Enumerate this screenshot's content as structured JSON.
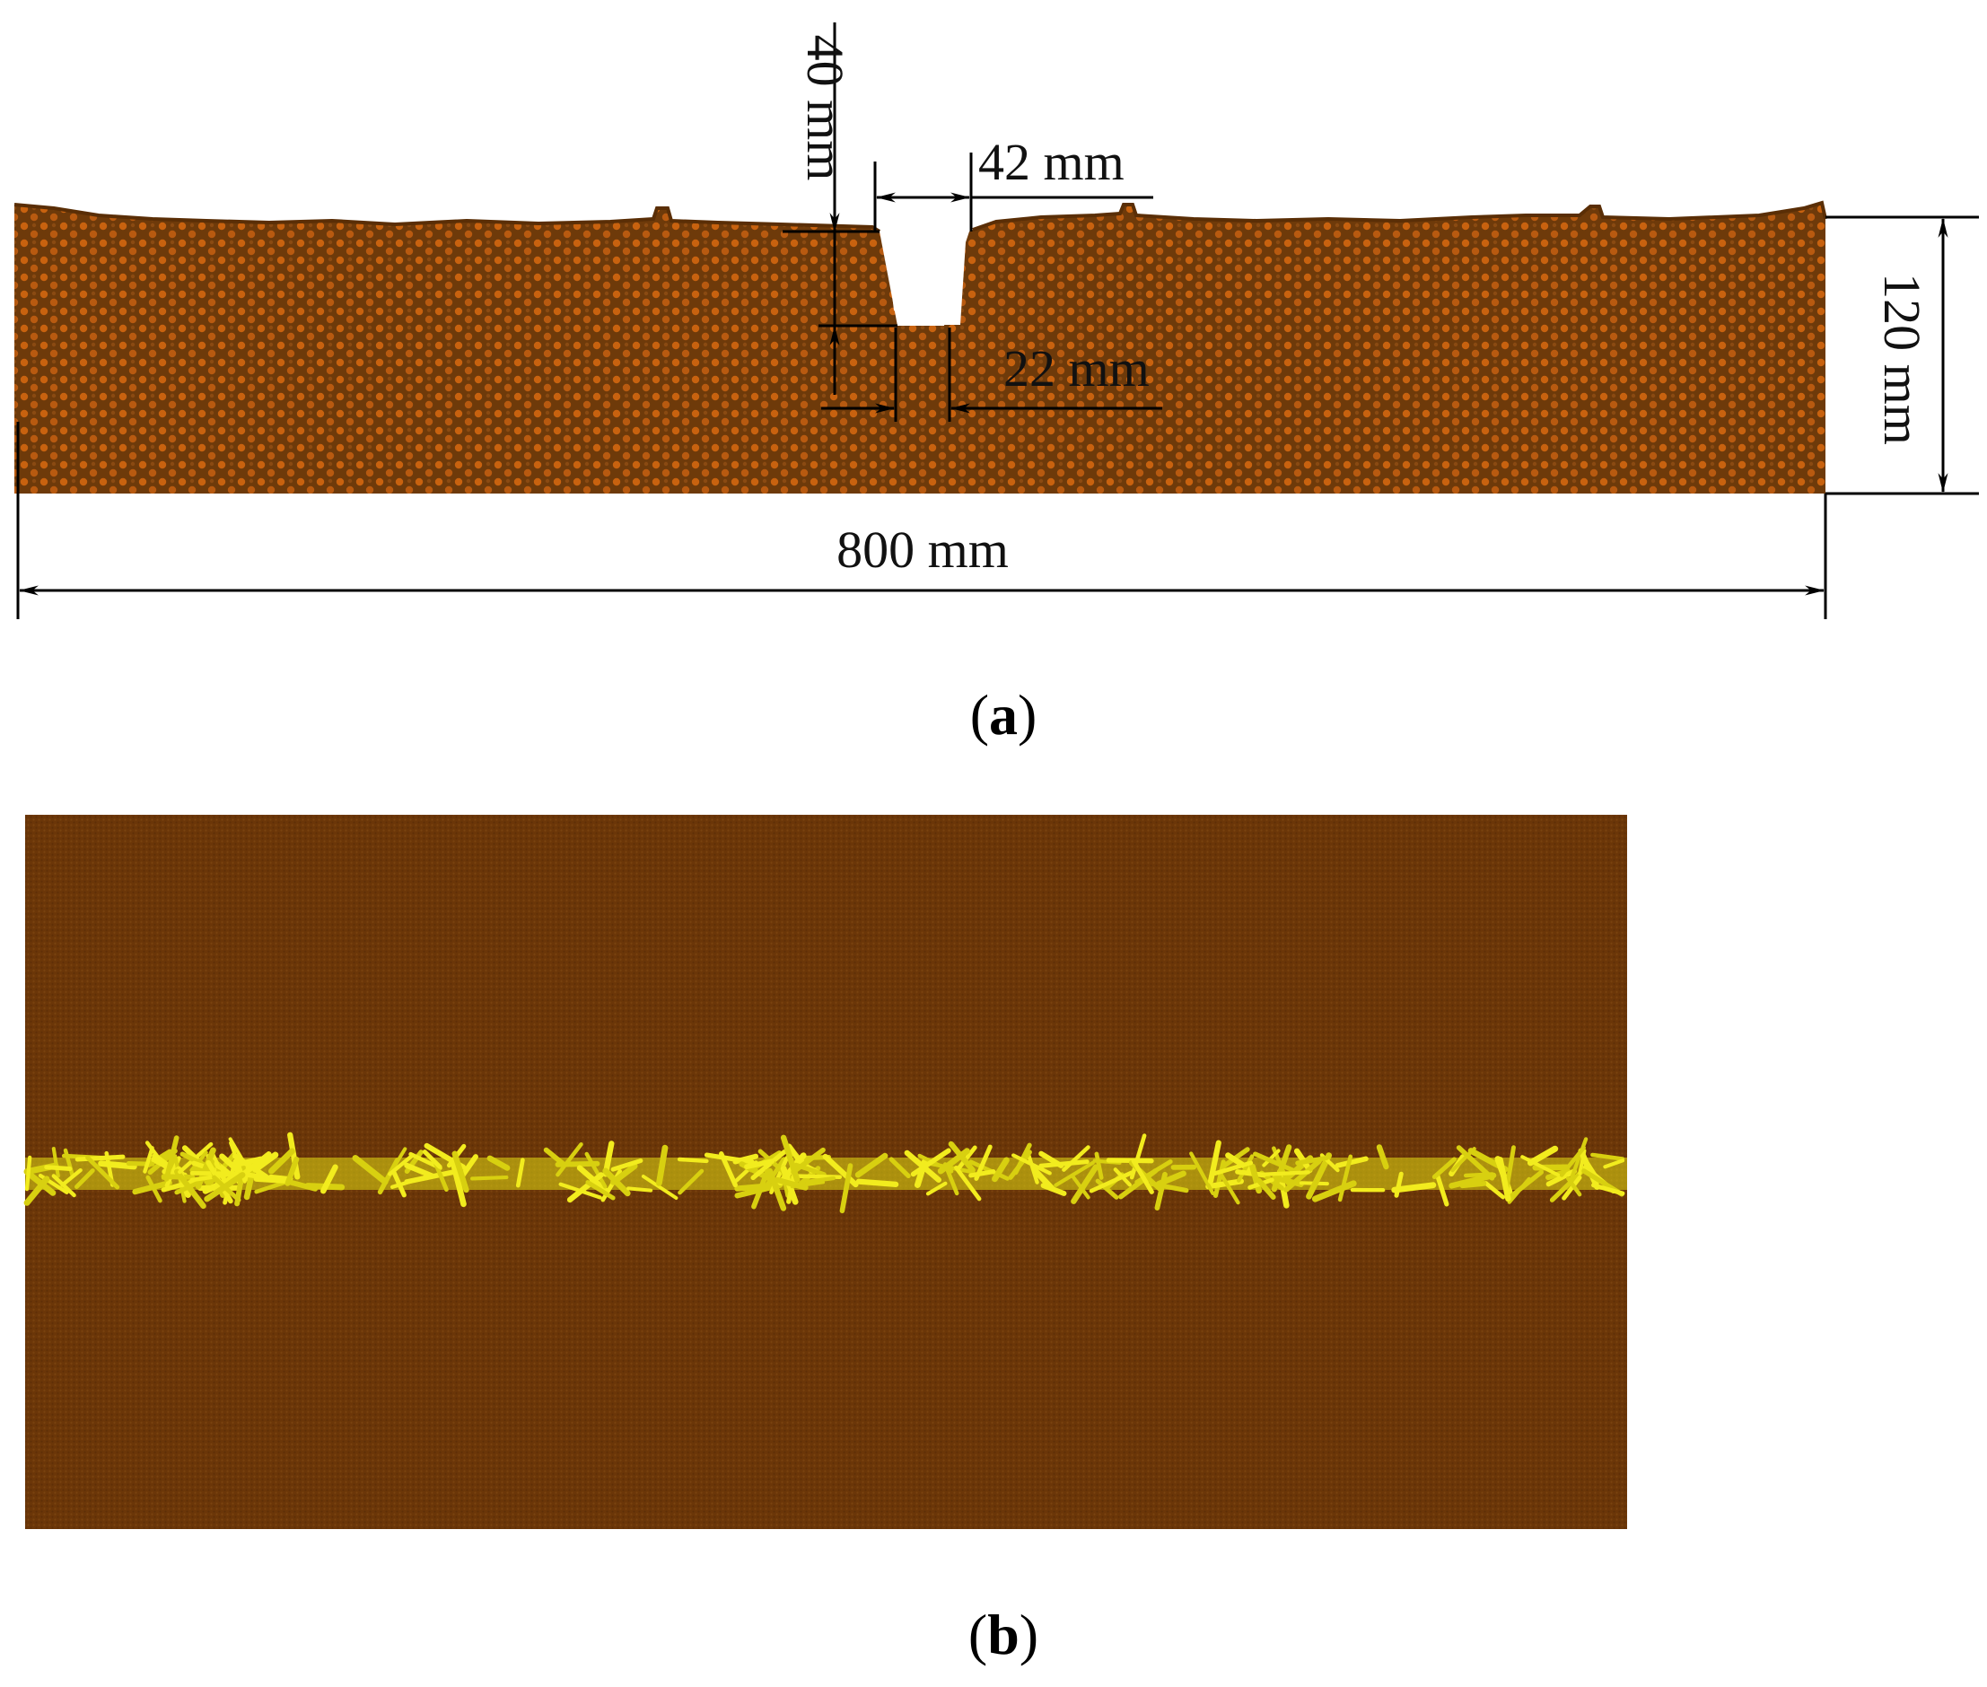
{
  "panel_a": {
    "dimensions": {
      "groove_depth": "40 mm",
      "groove_top_width": "42 mm",
      "groove_bottom_width": "22 mm",
      "bed_height": "120 mm",
      "bed_length": "800 mm"
    },
    "caption": {
      "open": "(",
      "letter": "a",
      "close": ")"
    },
    "colors": {
      "soil": "#6e3a0a",
      "particle": "#c8620f"
    }
  },
  "panel_b": {
    "caption": {
      "open": "(",
      "letter": "b",
      "close": ")"
    },
    "colors": {
      "soil": "#6b3608",
      "straw": "#e8e21a"
    }
  }
}
